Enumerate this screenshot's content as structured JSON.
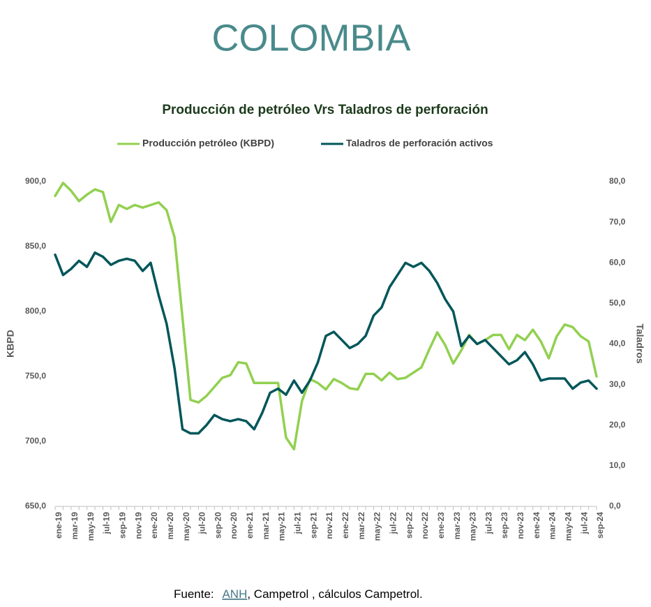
{
  "header": {
    "title": "COLOMBIA"
  },
  "chart_data": {
    "type": "line",
    "title": "Producción de petróleo Vrs Taladros de perforación",
    "y_label": "KBPD",
    "y2_label": "Taladros",
    "categories": [
      "ene-19",
      null,
      "mar-19",
      null,
      "may-19",
      null,
      "jul-19",
      null,
      "sep-19",
      null,
      "nov-19",
      null,
      "ene-20",
      null,
      "mar-20",
      null,
      "may-20",
      null,
      "jul-20",
      null,
      "sep-20",
      null,
      "nov-20",
      null,
      "ene-21",
      null,
      "mar-21",
      null,
      "may-21",
      null,
      "jul-21",
      null,
      "sep-21",
      null,
      "nov-21",
      null,
      "ene-22",
      null,
      "mar-22",
      null,
      "may-22",
      null,
      "jul-22",
      null,
      "sep-22",
      null,
      "nov-22",
      null,
      "ene-23",
      null,
      "mar-23",
      null,
      "may-23",
      null,
      "jul-23",
      null,
      "sep-23",
      null,
      "nov-23",
      null,
      "ene-24",
      null,
      "mar-24",
      null,
      "may-24",
      null,
      "jul-24",
      null,
      "sep-24"
    ],
    "series": [
      {
        "name": "Producción petróleo (KBPD)",
        "color": "#92d050",
        "values": [
          889,
          899,
          893,
          885,
          890,
          894,
          892,
          869,
          882,
          879,
          882,
          880,
          882,
          884,
          878,
          857,
          795,
          732,
          730,
          735,
          742,
          749,
          751,
          761,
          760,
          745,
          745,
          745,
          745,
          703,
          694,
          731,
          748,
          745,
          740,
          748,
          745,
          741,
          740,
          752,
          752,
          747,
          753,
          748,
          749,
          753,
          757,
          771,
          784,
          774,
          760,
          770,
          782,
          775,
          778,
          782,
          782,
          771,
          782,
          778,
          786,
          777,
          764,
          781,
          790,
          788,
          781,
          777,
          750
        ]
      },
      {
        "name": "Taladros de perforación activos",
        "color": "#00565a",
        "axis": "y2",
        "values": [
          62,
          57,
          58.5,
          60.5,
          59,
          62.5,
          61.5,
          59.5,
          60.5,
          61,
          60.5,
          58,
          60,
          52,
          45,
          34,
          19,
          18,
          18,
          20,
          22.5,
          21.5,
          21,
          21.5,
          21,
          19,
          23,
          28,
          29,
          27.5,
          31,
          28,
          31,
          35.5,
          42,
          43,
          41,
          39,
          40,
          42,
          47,
          49,
          54,
          57,
          60,
          59,
          60,
          58,
          55,
          51,
          48,
          39.5,
          42,
          40,
          41,
          39,
          37,
          35,
          36,
          38,
          35,
          31,
          31.5,
          31.5,
          31.5,
          29,
          30.5,
          31,
          29
        ]
      }
    ],
    "ylim": [
      650,
      900
    ],
    "yticks": [
      {
        "value": 650,
        "label": "650,0"
      },
      {
        "value": 700,
        "label": "700,0"
      },
      {
        "value": 750,
        "label": "750,0"
      },
      {
        "value": 800,
        "label": "800,0"
      },
      {
        "value": 850,
        "label": "850,0"
      },
      {
        "value": 900,
        "label": "900,0"
      }
    ],
    "y2lim": [
      0,
      80
    ],
    "y2ticks": [
      {
        "value": 0,
        "label": "0,0"
      },
      {
        "value": 10,
        "label": "10,0"
      },
      {
        "value": 20,
        "label": "20,0"
      },
      {
        "value": 30,
        "label": "30,0"
      },
      {
        "value": 40,
        "label": "40,0"
      },
      {
        "value": 50,
        "label": "50,0"
      },
      {
        "value": 60,
        "label": "60,0"
      },
      {
        "value": 70,
        "label": "70,0"
      },
      {
        "value": 80,
        "label": "80,0"
      }
    ],
    "grid": false,
    "legend": "top",
    "source_prefix": "Fuente:",
    "source_link": "ANH",
    "source_suffix": ", Campetrol , cálculos Campetrol."
  }
}
